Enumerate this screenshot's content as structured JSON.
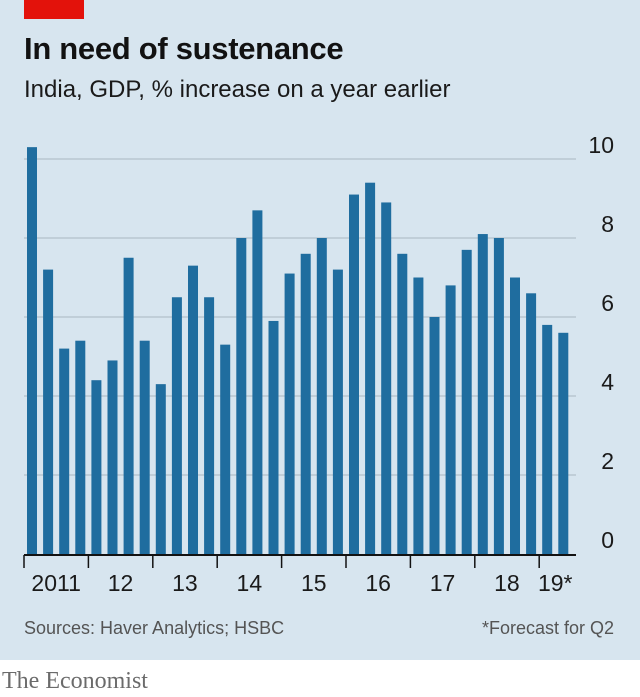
{
  "header": {
    "title": "In need of sustenance",
    "subtitle": "India, GDP, % increase on a year earlier"
  },
  "footer": {
    "sources": "Sources: Haver Analytics; HSBC",
    "footnote": "*Forecast for Q2",
    "brand": "The Economist"
  },
  "colors": {
    "bar": "#1f6d9f",
    "panel": "#d7e5ef",
    "accent": "#e3120b",
    "gridline": "#aab7c2"
  },
  "chart_data": {
    "type": "bar",
    "y_axis_side": "right",
    "ylim": [
      0,
      10
    ],
    "y_ticks": [
      0,
      2,
      4,
      6,
      8,
      10
    ],
    "grid": true,
    "year_labels": [
      "2011",
      "12",
      "13",
      "14",
      "15",
      "16",
      "17",
      "18",
      "19*"
    ],
    "categories": [
      "2011 Q1",
      "2011 Q2",
      "2011 Q3",
      "2011 Q4",
      "2012 Q1",
      "2012 Q2",
      "2012 Q3",
      "2012 Q4",
      "2013 Q1",
      "2013 Q2",
      "2013 Q3",
      "2013 Q4",
      "2014 Q1",
      "2014 Q2",
      "2014 Q3",
      "2014 Q4",
      "2015 Q1",
      "2015 Q2",
      "2015 Q3",
      "2015 Q4",
      "2016 Q1",
      "2016 Q2",
      "2016 Q3",
      "2016 Q4",
      "2017 Q1",
      "2017 Q2",
      "2017 Q3",
      "2017 Q4",
      "2018 Q1",
      "2018 Q2",
      "2018 Q3",
      "2018 Q4",
      "2019 Q1",
      "2019 Q2"
    ],
    "values": [
      10.3,
      7.2,
      5.2,
      5.4,
      4.4,
      4.9,
      7.5,
      5.4,
      4.3,
      6.5,
      7.3,
      6.5,
      5.3,
      8.0,
      8.7,
      5.9,
      7.1,
      7.6,
      8.0,
      7.2,
      9.1,
      9.4,
      8.9,
      7.6,
      7.0,
      6.0,
      6.8,
      7.7,
      8.1,
      8.0,
      7.0,
      6.6,
      5.8,
      5.6
    ]
  }
}
